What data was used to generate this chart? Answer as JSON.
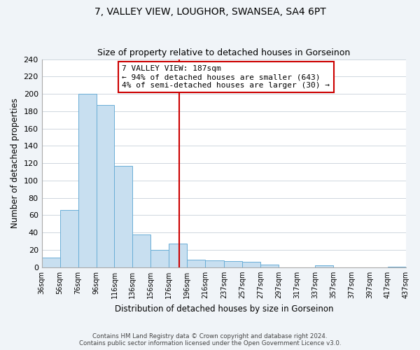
{
  "title": "7, VALLEY VIEW, LOUGHOR, SWANSEA, SA4 6PT",
  "subtitle": "Size of property relative to detached houses in Gorseinon",
  "xlabel": "Distribution of detached houses by size in Gorseinon",
  "ylabel": "Number of detached properties",
  "bin_edges": [
    36,
    56,
    76,
    96,
    116,
    136,
    156,
    176,
    196,
    216,
    237,
    257,
    277,
    297,
    317,
    337,
    357,
    377,
    397,
    417,
    437
  ],
  "bar_heights": [
    11,
    66,
    200,
    187,
    117,
    38,
    20,
    27,
    9,
    8,
    7,
    6,
    3,
    0,
    0,
    2,
    0,
    0,
    0,
    1
  ],
  "bar_color": "#c8dff0",
  "bar_edge_color": "#6aaed6",
  "vline_x": 187,
  "vline_color": "#cc0000",
  "ylim": [
    0,
    240
  ],
  "yticks": [
    0,
    20,
    40,
    60,
    80,
    100,
    120,
    140,
    160,
    180,
    200,
    220,
    240
  ],
  "xtick_labels": [
    "36sqm",
    "56sqm",
    "76sqm",
    "96sqm",
    "116sqm",
    "136sqm",
    "156sqm",
    "176sqm",
    "196sqm",
    "216sqm",
    "237sqm",
    "257sqm",
    "277sqm",
    "297sqm",
    "317sqm",
    "337sqm",
    "357sqm",
    "377sqm",
    "397sqm",
    "417sqm",
    "437sqm"
  ],
  "annotation_title": "7 VALLEY VIEW: 187sqm",
  "annotation_line1": "← 94% of detached houses are smaller (643)",
  "annotation_line2": "4% of semi-detached houses are larger (30) →",
  "annotation_box_color": "#ffffff",
  "annotation_box_edge": "#cc0000",
  "footer_line1": "Contains HM Land Registry data © Crown copyright and database right 2024.",
  "footer_line2": "Contains public sector information licensed under the Open Government Licence v3.0.",
  "bg_color": "#f0f4f8",
  "plot_bg_color": "#ffffff",
  "grid_color": "#c8d0d8"
}
